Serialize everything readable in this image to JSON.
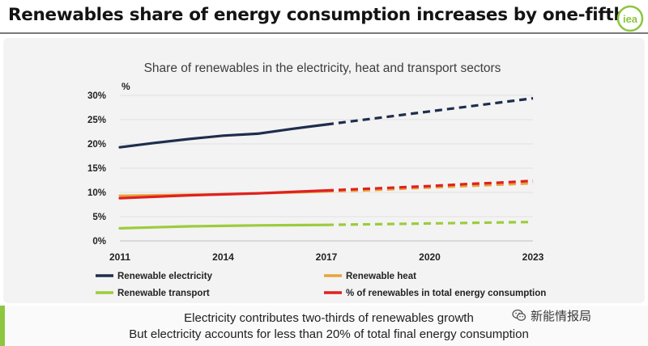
{
  "header": {
    "title": "Renewables share of energy consumption increases by one-fifth",
    "logo_text": "iea",
    "accent_color": "#8dc63f"
  },
  "chart_data": {
    "type": "line",
    "title": "Share of renewables in the electricity, heat and transport sectors",
    "ylabel": "%",
    "xlabel": "",
    "x": [
      2011,
      2012,
      2013,
      2014,
      2015,
      2016,
      2017,
      2018,
      2019,
      2020,
      2021,
      2022,
      2023
    ],
    "xticks": [
      2011,
      2014,
      2017,
      2020,
      2023
    ],
    "ylim": [
      0,
      30
    ],
    "yticks": [
      0,
      5,
      10,
      15,
      20,
      25,
      30
    ],
    "ytick_labels": [
      "0%",
      "5%",
      "10%",
      "15%",
      "20%",
      "25%",
      "30%"
    ],
    "projection_start": 2017,
    "grid": true,
    "series": [
      {
        "name": "Renewable electricity",
        "color": "#1f2d4d",
        "values": [
          19.3,
          20.2,
          21.0,
          21.7,
          22.1,
          23.1,
          24.0,
          24.9,
          25.8,
          26.7,
          27.6,
          28.5,
          29.4
        ]
      },
      {
        "name": "Renewable heat",
        "color": "#e8a33a",
        "values": [
          9.3,
          9.4,
          9.5,
          9.6,
          9.8,
          10.0,
          10.2,
          10.4,
          10.7,
          11.0,
          11.3,
          11.6,
          11.9
        ]
      },
      {
        "name": "Renewable transport",
        "color": "#9ccc3c",
        "values": [
          2.6,
          2.8,
          3.0,
          3.1,
          3.2,
          3.25,
          3.3,
          3.4,
          3.5,
          3.6,
          3.7,
          3.8,
          3.9
        ]
      },
      {
        "name": "% of renewables in total energy consumption",
        "color": "#e02020",
        "values": [
          8.8,
          9.1,
          9.4,
          9.6,
          9.8,
          10.1,
          10.4,
          10.7,
          11.0,
          11.3,
          11.7,
          12.0,
          12.4
        ]
      }
    ]
  },
  "footer": {
    "line1": "Electricity contributes two-thirds of renewables growth",
    "line2": "But electricity accounts for less than 20% of total final energy consumption"
  },
  "watermark": {
    "text": "新能情报局",
    "icon": "wechat-icon"
  }
}
